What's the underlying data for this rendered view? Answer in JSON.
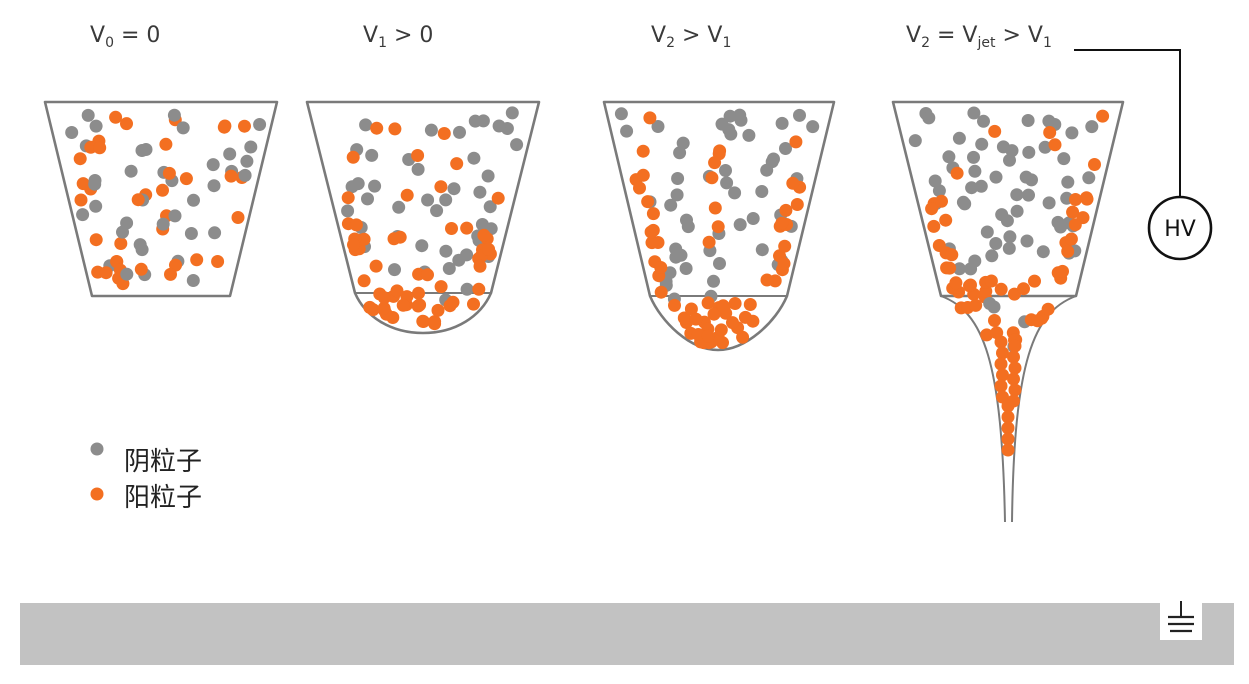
{
  "labels": [
    {
      "v": "V",
      "sub": "0",
      "rest": " = 0"
    },
    {
      "v": "V",
      "sub": "1",
      "rest": " > 0"
    },
    {
      "v": "V",
      "sub": "2",
      "rest": " > V",
      "sub2": "1"
    },
    {
      "v": "V",
      "sub": "2",
      "rest": " = V",
      "sub2": "jet",
      "rest2": " > V",
      "sub3": "1"
    }
  ],
  "hv_label": "HV",
  "legend": [
    {
      "label": "阴粒子",
      "color": "#8C8C8C"
    },
    {
      "label": "阳粒子",
      "color": "#F36F21"
    }
  ],
  "colors": {
    "negative_particle": "#8C8C8C",
    "positive_particle": "#F36F21",
    "nozzle_outline": "#7A7A7A",
    "substrate": "#C2C2C2",
    "wire": "#111111"
  },
  "icons": {
    "ground": "ground-icon",
    "hv_source": "hv-source-icon"
  }
}
